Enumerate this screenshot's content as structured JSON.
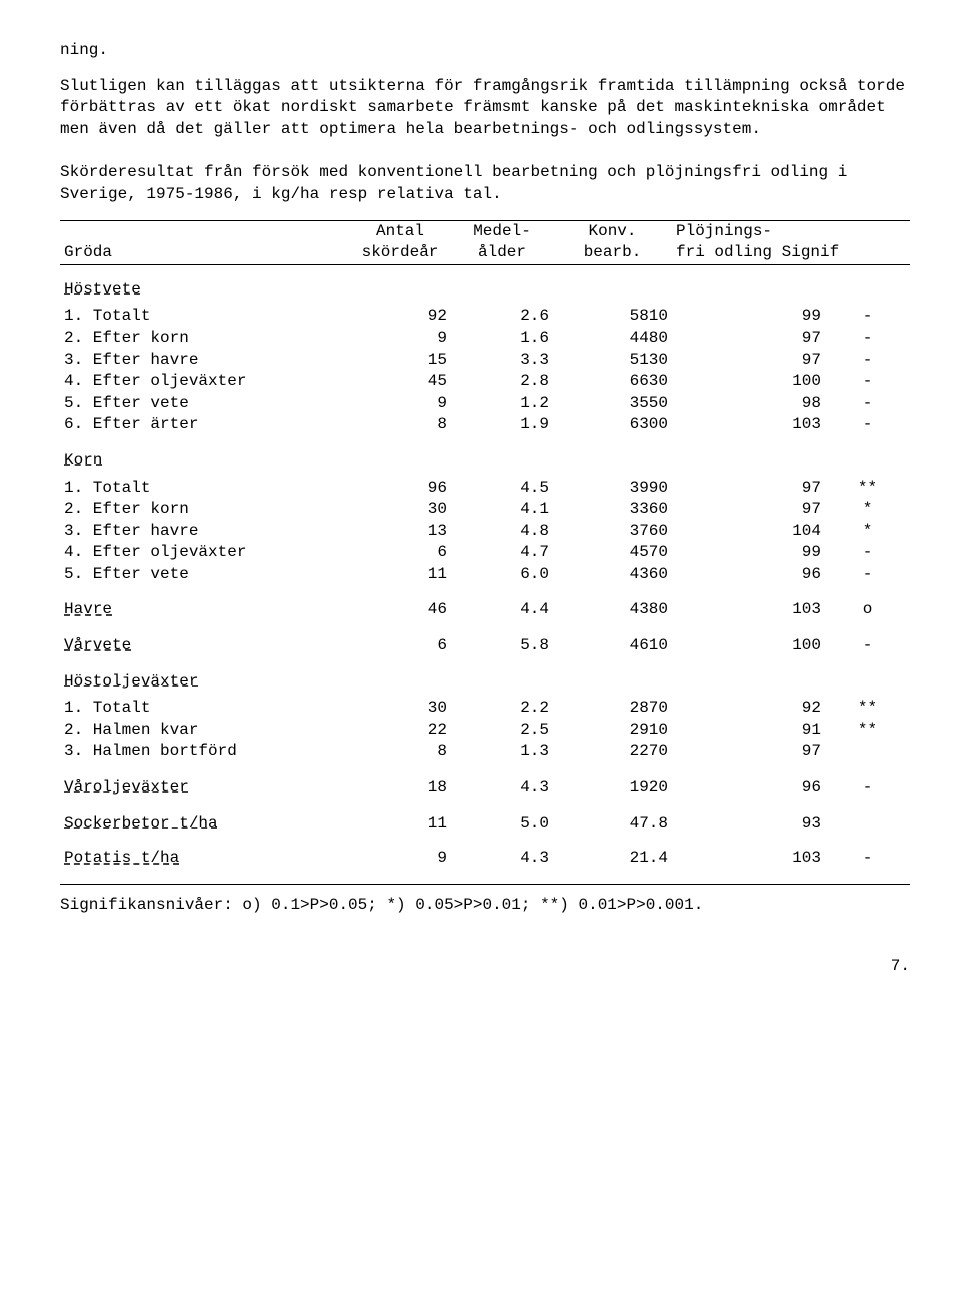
{
  "intro": {
    "frag": "ning.",
    "para": "Slutligen kan tilläggas att utsikterna för framgångsrik framtida tillämpning också torde förbättras av ett ökat nordiskt samarbete främsmt kanske på det maskintekniska området men även då det gäller att optimera hela bearbetnings- och odlingssystem.",
    "caption": "Skörderesultat från försök med konventionell bearbetning och plöjningsfri odling i Sverige, 1975-1986, i kg/ha resp relativa tal."
  },
  "table": {
    "headers": {
      "groda": "Gröda",
      "antal1": "Antal",
      "antal2": "skördeår",
      "medel1": "Medel-",
      "medel2": "ålder",
      "konv1": "Konv.",
      "konv2": "bearb.",
      "ploj1": "Plöjnings-",
      "ploj2": "fri odling Signif"
    },
    "sections": [
      {
        "title": "Höstvete",
        "rows": [
          {
            "label": "1. Totalt",
            "a": "92",
            "b": "2.6",
            "c": "5810",
            "d": "99",
            "s": "-"
          },
          {
            "label": "2. Efter korn",
            "a": "9",
            "b": "1.6",
            "c": "4480",
            "d": "97",
            "s": "-"
          },
          {
            "label": "3. Efter havre",
            "a": "15",
            "b": "3.3",
            "c": "5130",
            "d": "97",
            "s": "-"
          },
          {
            "label": "4. Efter oljeväxter",
            "a": "45",
            "b": "2.8",
            "c": "6630",
            "d": "100",
            "s": "-"
          },
          {
            "label": "5. Efter vete",
            "a": "9",
            "b": "1.2",
            "c": "3550",
            "d": "98",
            "s": "-"
          },
          {
            "label": "6. Efter ärter",
            "a": "8",
            "b": "1.9",
            "c": "6300",
            "d": "103",
            "s": "-"
          }
        ]
      },
      {
        "title": "Korn",
        "rows": [
          {
            "label": "1. Totalt",
            "a": "96",
            "b": "4.5",
            "c": "3990",
            "d": "97",
            "s": "**"
          },
          {
            "label": "2. Efter korn",
            "a": "30",
            "b": "4.1",
            "c": "3360",
            "d": "97",
            "s": "*"
          },
          {
            "label": "3. Efter havre",
            "a": "13",
            "b": "4.8",
            "c": "3760",
            "d": "104",
            "s": "*"
          },
          {
            "label": "4. Efter oljeväxter",
            "a": "6",
            "b": "4.7",
            "c": "4570",
            "d": "99",
            "s": "-"
          },
          {
            "label": "5. Efter vete",
            "a": "11",
            "b": "6.0",
            "c": "4360",
            "d": "96",
            "s": "-"
          }
        ]
      },
      {
        "title": "Havre",
        "inline": true,
        "rows": [
          {
            "label": "",
            "a": "46",
            "b": "4.4",
            "c": "4380",
            "d": "103",
            "s": "o"
          }
        ]
      },
      {
        "title": "Vårvete",
        "inline": true,
        "rows": [
          {
            "label": "",
            "a": "6",
            "b": "5.8",
            "c": "4610",
            "d": "100",
            "s": "-"
          }
        ]
      },
      {
        "title": "Höstoljeväxter",
        "rows": [
          {
            "label": "1. Totalt",
            "a": "30",
            "b": "2.2",
            "c": "2870",
            "d": "92",
            "s": "**"
          },
          {
            "label": "2. Halmen kvar",
            "a": "22",
            "b": "2.5",
            "c": "2910",
            "d": "91",
            "s": "**"
          },
          {
            "label": "3. Halmen bortförd",
            "a": "8",
            "b": "1.3",
            "c": "2270",
            "d": "97",
            "s": ""
          }
        ]
      },
      {
        "title": "Våroljeväxter",
        "inline": true,
        "rows": [
          {
            "label": "",
            "a": "18",
            "b": "4.3",
            "c": "1920",
            "d": "96",
            "s": "-"
          }
        ]
      },
      {
        "title": "Sockerbetor t/ha",
        "inline": true,
        "rows": [
          {
            "label": "",
            "a": "11",
            "b": "5.0",
            "c": "47.8",
            "d": "93",
            "s": ""
          }
        ]
      },
      {
        "title": "Potatis t/ha",
        "inline": true,
        "rows": [
          {
            "label": "",
            "a": "9",
            "b": "4.3",
            "c": "21.4",
            "d": "103",
            "s": "-"
          }
        ]
      }
    ]
  },
  "footer": {
    "text": "Signifikansnivåer:  o) 0.1>P>0.05;  *) 0.05>P>0.01;  **) 0.01>P>0.001."
  },
  "pagenum": "7."
}
